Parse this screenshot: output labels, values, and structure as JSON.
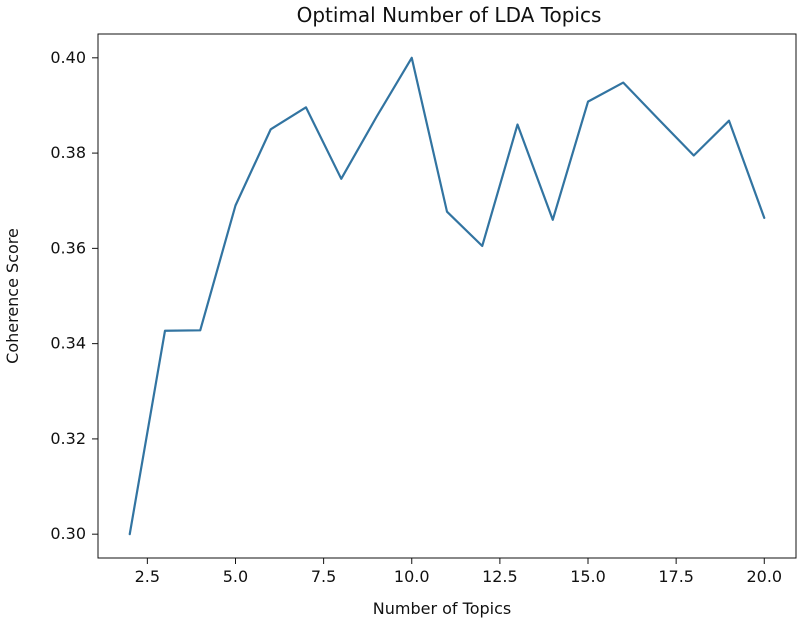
{
  "chart_data": {
    "type": "line",
    "title": "Optimal Number of LDA Topics",
    "xlabel": "Number of Topics",
    "ylabel": "Coherence Score",
    "xlim": [
      1.1,
      20.9
    ],
    "ylim": [
      0.295,
      0.405
    ],
    "x_ticks": [
      2.5,
      5.0,
      7.5,
      10.0,
      12.5,
      15.0,
      17.5,
      20.0
    ],
    "x_tick_labels": [
      "2.5",
      "5.0",
      "7.5",
      "10.0",
      "12.5",
      "15.0",
      "17.5",
      "20.0"
    ],
    "y_ticks": [
      0.3,
      0.32,
      0.34,
      0.36,
      0.38,
      0.4
    ],
    "y_tick_labels": [
      "0.30",
      "0.32",
      "0.34",
      "0.36",
      "0.38",
      "0.40"
    ],
    "grid": false,
    "series": [
      {
        "x": [
          2,
          3,
          4,
          5,
          6,
          7,
          8,
          9,
          10,
          11,
          12,
          13,
          14,
          15,
          16,
          17,
          18,
          19,
          20
        ],
        "values": [
          0.3,
          0.3427,
          0.3428,
          0.369,
          0.385,
          0.3896,
          0.3746,
          0.3876,
          0.4,
          0.3677,
          0.3605,
          0.386,
          0.366,
          0.3908,
          0.3948,
          0.3871,
          0.3795,
          0.3868,
          0.3664
        ],
        "color": "#3274a1"
      }
    ]
  }
}
